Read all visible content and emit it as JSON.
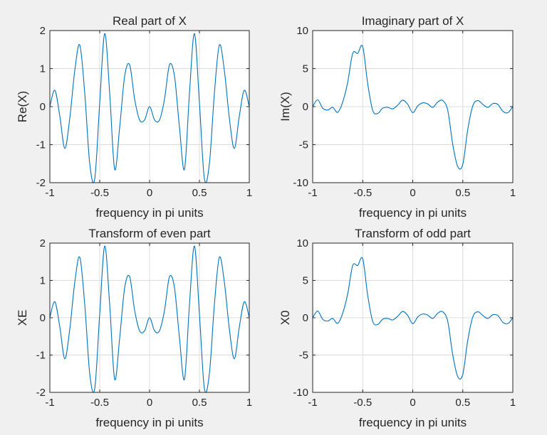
{
  "chart_data": [
    {
      "type": "line",
      "title": "Real part of X",
      "xlabel": "frequency in pi units",
      "ylabel": "Re(X)",
      "xlim": [
        -1,
        1
      ],
      "ylim": [
        -2,
        2
      ],
      "xticks": [
        -1,
        -0.5,
        0,
        0.5,
        1
      ],
      "yticks": [
        -2,
        -1,
        0,
        1,
        2
      ],
      "xtick_labels": [
        "-1",
        "-0.5",
        "0",
        "0.5",
        "1"
      ],
      "ytick_labels": [
        "-2",
        "-1",
        "0",
        "1",
        "2"
      ],
      "grid": true,
      "color": "#0072BD",
      "x": [
        -1,
        -0.95,
        -0.9,
        -0.85,
        -0.8,
        -0.75,
        -0.7,
        -0.65,
        -0.6,
        -0.55,
        -0.5,
        -0.45,
        -0.4,
        -0.35,
        -0.3,
        -0.25,
        -0.2,
        -0.15,
        -0.1,
        -0.05,
        0,
        0.05,
        0.1,
        0.15,
        0.2,
        0.25,
        0.3,
        0.35,
        0.4,
        0.45,
        0.5,
        0.55,
        0.6,
        0.65,
        0.7,
        0.75,
        0.8,
        0.85,
        0.9,
        0.95,
        1
      ],
      "y": [
        0,
        0.43,
        -0.25,
        -1.1,
        -0.3,
        0.95,
        1.62,
        0.35,
        -1.5,
        -1.9,
        0.1,
        1.92,
        0.35,
        -1.65,
        -0.55,
        0.8,
        1.1,
        0.2,
        -0.35,
        -0.35,
        0,
        -0.35,
        -0.35,
        0.2,
        1.1,
        0.8,
        -0.55,
        -1.65,
        0.35,
        1.92,
        0.1,
        -1.9,
        -1.5,
        0.35,
        1.62,
        0.95,
        -0.3,
        -1.1,
        -0.25,
        0.43,
        0
      ]
    },
    {
      "type": "line",
      "title": "Imaginary part of X",
      "xlabel": "frequency in pi units",
      "ylabel": "Im(X)",
      "xlim": [
        -1,
        1
      ],
      "ylim": [
        -10,
        10
      ],
      "xticks": [
        -1,
        -0.5,
        0,
        0.5,
        1
      ],
      "yticks": [
        -10,
        -5,
        0,
        5,
        10
      ],
      "xtick_labels": [
        "-1",
        "-0.5",
        "0",
        "0.5",
        "1"
      ],
      "ytick_labels": [
        "-10",
        "-5",
        "0",
        "5",
        "10"
      ],
      "grid": true,
      "color": "#0072BD",
      "x": [
        -1,
        -0.95,
        -0.9,
        -0.85,
        -0.8,
        -0.75,
        -0.7,
        -0.65,
        -0.6,
        -0.55,
        -0.5,
        -0.45,
        -0.4,
        -0.35,
        -0.3,
        -0.25,
        -0.2,
        -0.15,
        -0.1,
        -0.05,
        0,
        0.05,
        0.1,
        0.15,
        0.2,
        0.25,
        0.3,
        0.35,
        0.4,
        0.45,
        0.5,
        0.55,
        0.6,
        0.65,
        0.7,
        0.75,
        0.8,
        0.85,
        0.9,
        0.95,
        1
      ],
      "y": [
        0,
        0.9,
        -0.2,
        -0.45,
        -0.1,
        -0.75,
        0.6,
        3.2,
        7.0,
        7.0,
        7.9,
        3.0,
        -0.5,
        -0.9,
        -0.2,
        -0.1,
        -0.3,
        0.2,
        0.85,
        0.3,
        -0.8,
        0.1,
        0.5,
        0.35,
        -0.1,
        0.6,
        0.8,
        -0.5,
        -5.0,
        -7.9,
        -7.6,
        -3.0,
        0.1,
        0.8,
        0.3,
        -0.1,
        0.4,
        0.3,
        -0.6,
        -0.8,
        0
      ]
    },
    {
      "type": "line",
      "title": "Transform of even part",
      "xlabel": "frequency in pi units",
      "ylabel": "XE",
      "xlim": [
        -1,
        1
      ],
      "ylim": [
        -2,
        2
      ],
      "xticks": [
        -1,
        -0.5,
        0,
        0.5,
        1
      ],
      "yticks": [
        -2,
        -1,
        0,
        1,
        2
      ],
      "xtick_labels": [
        "-1",
        "-0.5",
        "0",
        "0.5",
        "1"
      ],
      "ytick_labels": [
        "-2",
        "-1",
        "0",
        "1",
        "2"
      ],
      "grid": true,
      "color": "#0072BD",
      "x": [
        -1,
        -0.95,
        -0.9,
        -0.85,
        -0.8,
        -0.75,
        -0.7,
        -0.65,
        -0.6,
        -0.55,
        -0.5,
        -0.45,
        -0.4,
        -0.35,
        -0.3,
        -0.25,
        -0.2,
        -0.15,
        -0.1,
        -0.05,
        0,
        0.05,
        0.1,
        0.15,
        0.2,
        0.25,
        0.3,
        0.35,
        0.4,
        0.45,
        0.5,
        0.55,
        0.6,
        0.65,
        0.7,
        0.75,
        0.8,
        0.85,
        0.9,
        0.95,
        1
      ],
      "y": [
        0,
        0.43,
        -0.25,
        -1.1,
        -0.3,
        0.95,
        1.62,
        0.35,
        -1.5,
        -1.9,
        0.1,
        1.92,
        0.35,
        -1.65,
        -0.55,
        0.8,
        1.1,
        0.2,
        -0.35,
        -0.35,
        0,
        -0.35,
        -0.35,
        0.2,
        1.1,
        0.8,
        -0.55,
        -1.65,
        0.35,
        1.92,
        0.1,
        -1.9,
        -1.5,
        0.35,
        1.62,
        0.95,
        -0.3,
        -1.1,
        -0.25,
        0.43,
        0
      ]
    },
    {
      "type": "line",
      "title": "Transform of odd part",
      "xlabel": "frequency in pi units",
      "ylabel": "X0",
      "xlim": [
        -1,
        1
      ],
      "ylim": [
        -10,
        10
      ],
      "xticks": [
        -1,
        -0.5,
        0,
        0.5,
        1
      ],
      "yticks": [
        -10,
        -5,
        0,
        5,
        10
      ],
      "xtick_labels": [
        "-1",
        "-0.5",
        "0",
        "0.5",
        "1"
      ],
      "ytick_labels": [
        "-10",
        "-5",
        "0",
        "5",
        "10"
      ],
      "grid": true,
      "color": "#0072BD",
      "x": [
        -1,
        -0.95,
        -0.9,
        -0.85,
        -0.8,
        -0.75,
        -0.7,
        -0.65,
        -0.6,
        -0.55,
        -0.5,
        -0.45,
        -0.4,
        -0.35,
        -0.3,
        -0.25,
        -0.2,
        -0.15,
        -0.1,
        -0.05,
        0,
        0.05,
        0.1,
        0.15,
        0.2,
        0.25,
        0.3,
        0.35,
        0.4,
        0.45,
        0.5,
        0.55,
        0.6,
        0.65,
        0.7,
        0.75,
        0.8,
        0.85,
        0.9,
        0.95,
        1
      ],
      "y": [
        0,
        0.9,
        -0.2,
        -0.45,
        -0.1,
        -0.75,
        0.6,
        3.2,
        7.0,
        7.0,
        7.9,
        3.0,
        -0.5,
        -0.9,
        -0.2,
        -0.1,
        -0.3,
        0.2,
        0.85,
        0.3,
        -0.8,
        0.1,
        0.5,
        0.35,
        -0.1,
        0.6,
        0.8,
        -0.5,
        -5.0,
        -7.9,
        -7.6,
        -3.0,
        0.1,
        0.8,
        0.3,
        -0.1,
        0.4,
        0.3,
        -0.6,
        -0.8,
        0
      ]
    }
  ]
}
